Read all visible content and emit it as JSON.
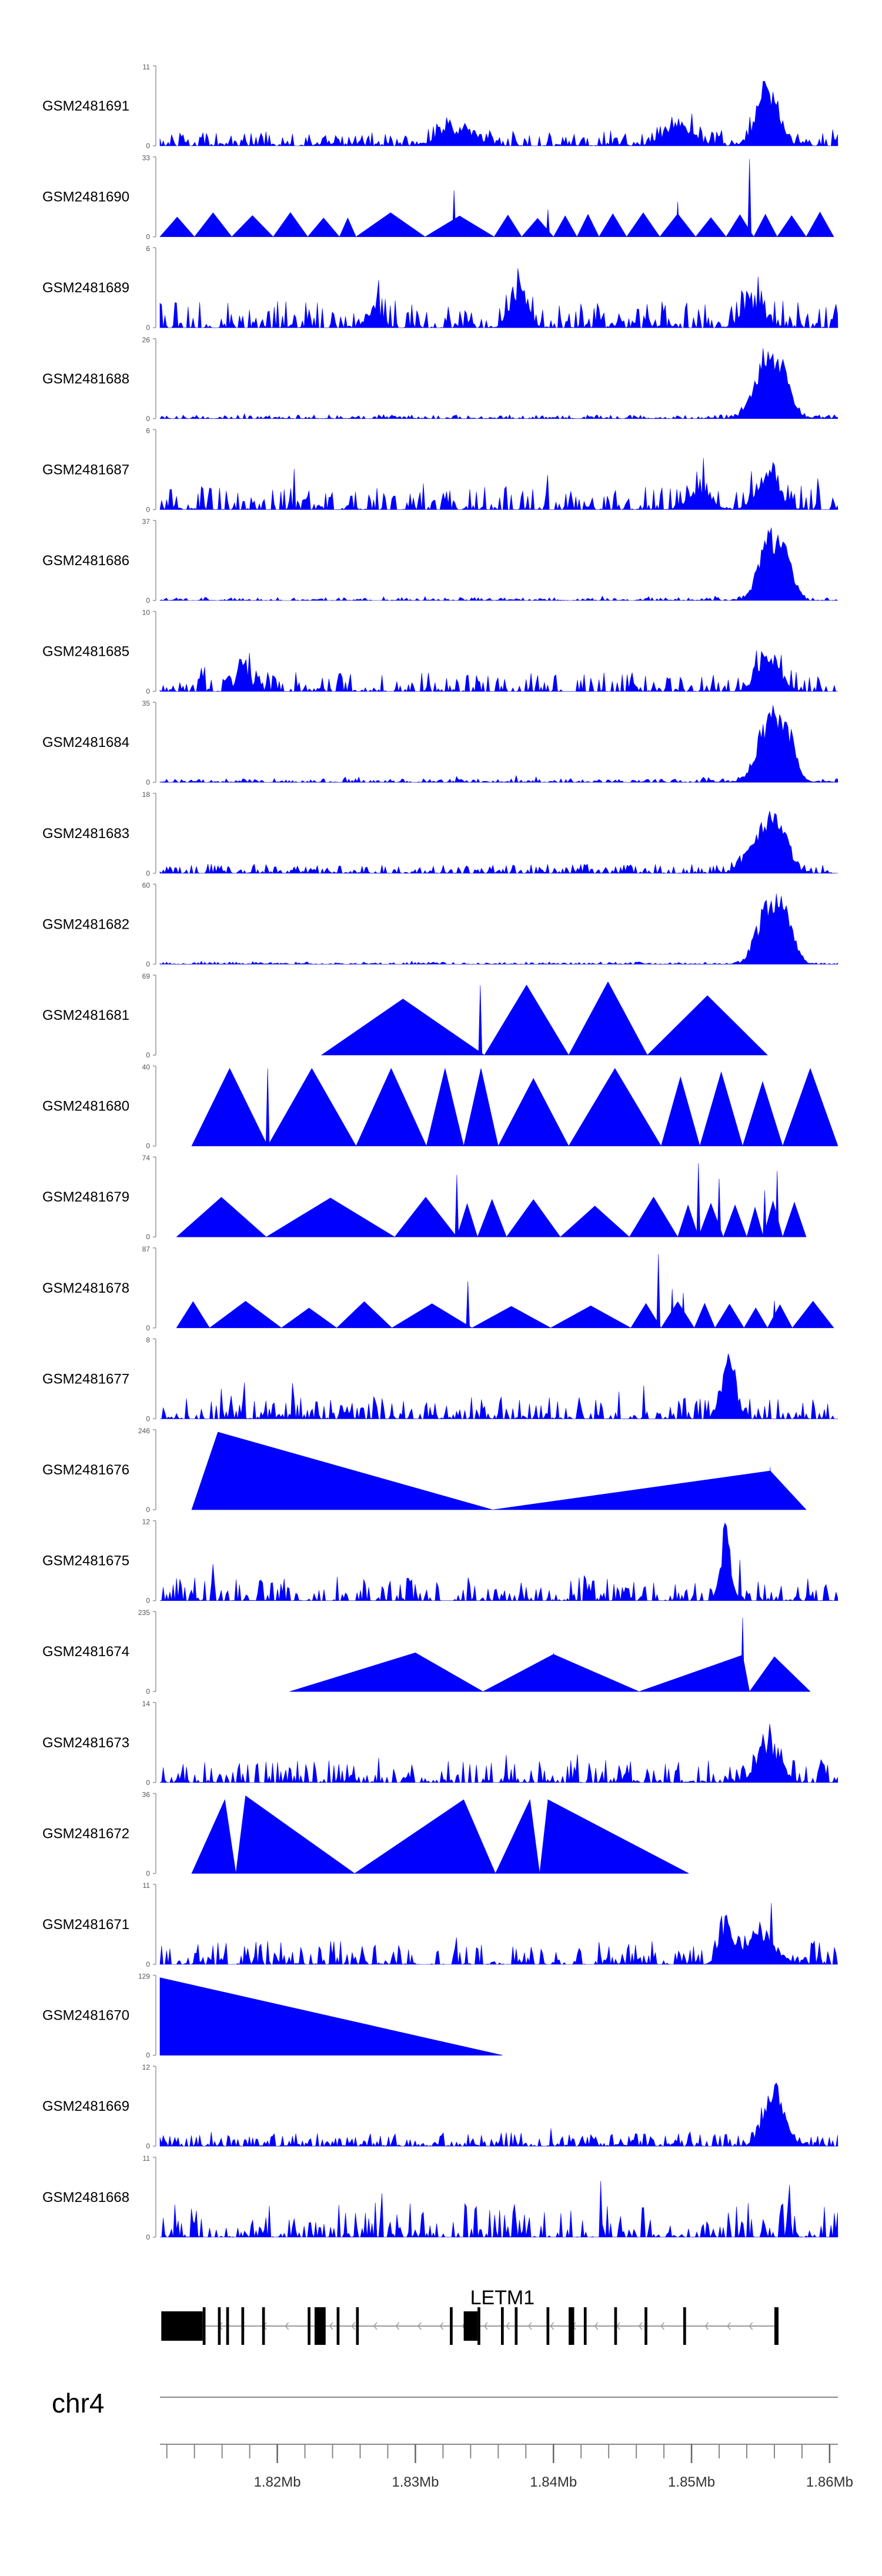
{
  "chart_data": {
    "type": "area",
    "title": "",
    "xlabel": "",
    "xlim_mb": [
      1.8115,
      1.8606
    ],
    "x_ticks": [
      {
        "value": 1.82,
        "label": "1.82Mb"
      },
      {
        "value": 1.83,
        "label": "1.83Mb"
      },
      {
        "value": 1.84,
        "label": "1.84Mb"
      },
      {
        "value": 1.85,
        "label": "1.85Mb"
      },
      {
        "value": 1.86,
        "label": "1.86Mb"
      }
    ],
    "chromosome": "chr4",
    "gene": {
      "name": "LETM1",
      "strand": "-",
      "start_mb": 1.8116,
      "end_mb": 1.8563,
      "exons": [
        [
          1.8116,
          1.8146
        ],
        [
          1.8146,
          1.8148
        ],
        [
          1.8157,
          1.8159
        ],
        [
          1.8163,
          1.8165
        ],
        [
          1.8174,
          1.8176
        ],
        [
          1.8189,
          1.8191
        ],
        [
          1.8222,
          1.8224
        ],
        [
          1.8227,
          1.8235
        ],
        [
          1.8243,
          1.8245
        ],
        [
          1.8257,
          1.8259
        ],
        [
          1.8325,
          1.8327
        ],
        [
          1.8335,
          1.8345
        ],
        [
          1.8345,
          1.8347
        ],
        [
          1.8362,
          1.8364
        ],
        [
          1.8372,
          1.8374
        ],
        [
          1.8395,
          1.8397
        ],
        [
          1.8411,
          1.8415
        ],
        [
          1.8422,
          1.8424
        ],
        [
          1.8444,
          1.8446
        ],
        [
          1.8466,
          1.8468
        ],
        [
          1.8494,
          1.8496
        ],
        [
          1.856,
          1.8563
        ]
      ]
    },
    "tracks": [
      {
        "name": "GSM2481691",
        "ymax": "11",
        "kind": "noise",
        "seed": 91,
        "density": 0.95,
        "base": 0.18,
        "peaks": [
          [
            1.8555,
            0.0008,
            0.8
          ],
          [
            1.849,
            0.001,
            0.3
          ],
          [
            1.833,
            0.0012,
            0.25
          ]
        ]
      },
      {
        "name": "GSM2481690",
        "ymax": "33",
        "kind": "tri",
        "seed": 90,
        "height": 0.28,
        "segments": [
          [
            1.8115,
            1.814
          ],
          [
            1.814,
            1.8167
          ],
          [
            1.8167,
            1.8197
          ],
          [
            1.8197,
            1.8222
          ],
          [
            1.8222,
            1.8245
          ],
          [
            1.8245,
            1.8257
          ],
          [
            1.8257,
            1.8307
          ],
          [
            1.8307,
            1.8357
          ],
          [
            1.8357,
            1.8377
          ],
          [
            1.8377,
            1.84
          ],
          [
            1.84,
            1.8417
          ],
          [
            1.8417,
            1.8433
          ],
          [
            1.8433,
            1.8453
          ],
          [
            1.8453,
            1.8477
          ],
          [
            1.8477,
            1.8503
          ],
          [
            1.8503,
            1.8525
          ],
          [
            1.8525,
            1.8545
          ],
          [
            1.8545,
            1.8562
          ],
          [
            1.8562,
            1.8583
          ],
          [
            1.8583,
            1.8603
          ]
        ],
        "spikes": [
          [
            1.8328,
            0.6
          ],
          [
            1.8396,
            0.35
          ],
          [
            1.8542,
            1.0
          ],
          [
            1.849,
            0.45
          ]
        ]
      },
      {
        "name": "GSM2481689",
        "ymax": "6",
        "kind": "noise",
        "seed": 89,
        "density": 0.75,
        "base": 0.35,
        "peaks": [
          [
            1.8375,
            0.0006,
            0.55
          ],
          [
            1.8545,
            0.0008,
            0.35
          ],
          [
            1.827,
            0.0005,
            0.3
          ]
        ]
      },
      {
        "name": "GSM2481688",
        "ymax": "26",
        "kind": "noise",
        "seed": 88,
        "density": 0.9,
        "base": 0.05,
        "peaks": [
          [
            1.8555,
            0.0009,
            0.95
          ],
          [
            1.8567,
            0.0006,
            0.45
          ]
        ]
      },
      {
        "name": "GSM2481687",
        "ymax": "6",
        "kind": "noise",
        "seed": 87,
        "density": 0.7,
        "base": 0.3,
        "peaks": [
          [
            1.8555,
            0.0008,
            0.55
          ],
          [
            1.8505,
            0.0008,
            0.3
          ]
        ]
      },
      {
        "name": "GSM2481686",
        "ymax": "37",
        "kind": "noise",
        "seed": 86,
        "density": 0.9,
        "base": 0.04,
        "peaks": [
          [
            1.8557,
            0.0008,
            0.95
          ],
          [
            1.857,
            0.0005,
            0.4
          ]
        ]
      },
      {
        "name": "GSM2481685",
        "ymax": "10",
        "kind": "noise",
        "seed": 85,
        "density": 0.7,
        "base": 0.25,
        "peaks": [
          [
            1.8556,
            0.0008,
            0.55
          ],
          [
            1.8175,
            0.0004,
            0.45
          ]
        ]
      },
      {
        "name": "GSM2481684",
        "ymax": "35",
        "kind": "noise",
        "seed": 84,
        "density": 0.9,
        "base": 0.05,
        "peaks": [
          [
            1.8557,
            0.0009,
            0.95
          ],
          [
            1.857,
            0.0006,
            0.5
          ]
        ]
      },
      {
        "name": "GSM2481683",
        "ymax": "18",
        "kind": "noise",
        "seed": 83,
        "density": 0.85,
        "base": 0.12,
        "peaks": [
          [
            1.8561,
            0.0008,
            0.85
          ],
          [
            1.8545,
            0.0008,
            0.4
          ]
        ]
      },
      {
        "name": "GSM2481682",
        "ymax": "60",
        "kind": "noise",
        "seed": 82,
        "density": 0.9,
        "base": 0.03,
        "peaks": [
          [
            1.8556,
            0.0008,
            0.95
          ],
          [
            1.8569,
            0.0006,
            0.55
          ]
        ]
      },
      {
        "name": "GSM2481681",
        "ymax": "69",
        "kind": "tri",
        "seed": 81,
        "height": 0.85,
        "segments": [
          [
            1.8232,
            1.835
          ],
          [
            1.835,
            1.8411
          ],
          [
            1.8411,
            1.8468
          ],
          [
            1.8468,
            1.8555
          ]
        ],
        "spikes": [
          [
            1.8347,
            0.9
          ]
        ]
      },
      {
        "name": "GSM2481680",
        "ymax": "40",
        "kind": "tri",
        "seed": 80,
        "height": 0.95,
        "segments": [
          [
            1.8138,
            1.8193
          ],
          [
            1.8193,
            1.8257
          ],
          [
            1.8257,
            1.8308
          ],
          [
            1.8308,
            1.8335
          ],
          [
            1.8335,
            1.836
          ],
          [
            1.836,
            1.8411
          ],
          [
            1.8411,
            1.8478
          ],
          [
            1.8478,
            1.8506
          ],
          [
            1.8506,
            1.8537
          ],
          [
            1.8537,
            1.8566
          ],
          [
            1.8566,
            1.8606
          ]
        ],
        "spikes": [
          [
            1.8193,
            1.0
          ]
        ]
      },
      {
        "name": "GSM2481679",
        "ymax": "74",
        "kind": "tri",
        "seed": 79,
        "height": 0.45,
        "segments": [
          [
            1.8127,
            1.8192
          ],
          [
            1.8192,
            1.8285
          ],
          [
            1.8285,
            1.833
          ],
          [
            1.833,
            1.8345
          ],
          [
            1.8345,
            1.8366
          ],
          [
            1.8366,
            1.8405
          ],
          [
            1.8405,
            1.8455
          ],
          [
            1.8455,
            1.849
          ],
          [
            1.849,
            1.8505
          ],
          [
            1.8505,
            1.8523
          ],
          [
            1.8523,
            1.854
          ],
          [
            1.854,
            1.8552
          ],
          [
            1.8552,
            1.8566
          ],
          [
            1.8566,
            1.8583
          ]
        ],
        "spikes": [
          [
            1.833,
            0.8
          ],
          [
            1.8505,
            0.95
          ],
          [
            1.852,
            0.75
          ],
          [
            1.8553,
            0.6
          ],
          [
            1.8562,
            0.85
          ]
        ]
      },
      {
        "name": "GSM2481678",
        "ymax": "87",
        "kind": "tri",
        "seed": 78,
        "height": 0.3,
        "segments": [
          [
            1.8127,
            1.8151
          ],
          [
            1.8151,
            1.8203
          ],
          [
            1.8203,
            1.8243
          ],
          [
            1.8243,
            1.8283
          ],
          [
            1.8283,
            1.8341
          ],
          [
            1.8341,
            1.8398
          ],
          [
            1.8398,
            1.8456
          ],
          [
            1.8456,
            1.8478
          ],
          [
            1.8478,
            1.8502
          ],
          [
            1.8502,
            1.8517
          ],
          [
            1.8517,
            1.8538
          ],
          [
            1.8538,
            1.8555
          ],
          [
            1.8555,
            1.8573
          ],
          [
            1.8573,
            1.8603
          ]
        ],
        "spikes": [
          [
            1.8338,
            0.6
          ],
          [
            1.8476,
            0.95
          ],
          [
            1.8486,
            0.5
          ],
          [
            1.8494,
            0.45
          ],
          [
            1.856,
            0.35
          ]
        ]
      },
      {
        "name": "GSM2481677",
        "ymax": "8",
        "kind": "noise",
        "seed": 77,
        "density": 0.75,
        "base": 0.28,
        "peaks": [
          [
            1.8527,
            0.0005,
            0.9
          ]
        ]
      },
      {
        "name": "GSM2481676",
        "ymax": "246",
        "kind": "tri",
        "seed": 76,
        "height": 1.0,
        "segments": [
          [
            1.8138,
            1.8356
          ],
          [
            1.8356,
            1.8583
          ]
        ],
        "custom_peaks": [
          [
            1.8138,
            1.8157,
            1.8356,
            1.0
          ],
          [
            1.8356,
            1.8557,
            1.8583,
            0.5
          ]
        ],
        "spikes": [
          [
            1.8557,
            0.55
          ]
        ]
      },
      {
        "name": "GSM2481675",
        "ymax": "12",
        "kind": "noise",
        "seed": 75,
        "density": 0.7,
        "base": 0.3,
        "peaks": [
          [
            1.8525,
            0.0004,
            0.85
          ]
        ]
      },
      {
        "name": "GSM2481674",
        "ymax": "235",
        "kind": "tri",
        "seed": 74,
        "height": 0.5,
        "segments": [
          [
            1.8209,
            1.83
          ],
          [
            1.83,
            1.8349
          ],
          [
            1.8349,
            1.8402
          ],
          [
            1.8402,
            1.8462
          ],
          [
            1.8462,
            1.854
          ],
          [
            1.854,
            1.8586
          ]
        ],
        "custom_peaks": [
          [
            1.8209,
            1.83,
            1.8349,
            0.5
          ],
          [
            1.8349,
            1.84,
            1.8462,
            0.48
          ],
          [
            1.8462,
            1.8537,
            1.8542,
            0.47
          ],
          [
            1.8542,
            1.856,
            1.8586,
            0.45
          ]
        ],
        "spikes": [
          [
            1.8537,
            0.95
          ],
          [
            1.84,
            0.5
          ]
        ]
      },
      {
        "name": "GSM2481673",
        "ymax": "14",
        "kind": "noise",
        "seed": 73,
        "density": 0.7,
        "base": 0.3,
        "peaks": [
          [
            1.8556,
            0.0008,
            0.55
          ]
        ]
      },
      {
        "name": "GSM2481672",
        "ymax": "36",
        "kind": "tri",
        "seed": 72,
        "height": 0.95,
        "segments": [
          [
            1.8138,
            1.817
          ],
          [
            1.817,
            1.8256
          ],
          [
            1.8256,
            1.8358
          ],
          [
            1.8358,
            1.839
          ],
          [
            1.839,
            1.8498
          ]
        ],
        "custom_peaks": [
          [
            1.8138,
            1.8162,
            1.817,
            0.95
          ],
          [
            1.817,
            1.8177,
            1.8256,
            1.0
          ],
          [
            1.8256,
            1.8335,
            1.8358,
            0.95
          ],
          [
            1.8358,
            1.8383,
            1.839,
            0.95
          ],
          [
            1.839,
            1.8396,
            1.8498,
            0.95
          ]
        ]
      },
      {
        "name": "GSM2481671",
        "ymax": "11",
        "kind": "noise",
        "seed": 71,
        "density": 0.75,
        "base": 0.3,
        "peaks": [
          [
            1.855,
            0.001,
            0.5
          ],
          [
            1.8525,
            0.0005,
            0.5
          ]
        ]
      },
      {
        "name": "GSM2481670",
        "ymax": "129",
        "kind": "tri",
        "seed": 70,
        "height": 1.0,
        "segments": [
          [
            1.8115,
            1.8363
          ]
        ],
        "custom_peaks": [
          [
            1.8115,
            1.8115,
            1.8363,
            1.0
          ]
        ]
      },
      {
        "name": "GSM2481669",
        "ymax": "12",
        "kind": "noise",
        "seed": 69,
        "density": 0.9,
        "base": 0.18,
        "peaks": [
          [
            1.856,
            0.0007,
            0.85
          ]
        ]
      },
      {
        "name": "GSM2481668",
        "ymax": "11",
        "kind": "noise",
        "seed": 68,
        "density": 0.6,
        "base": 0.45,
        "peaks": []
      }
    ]
  }
}
